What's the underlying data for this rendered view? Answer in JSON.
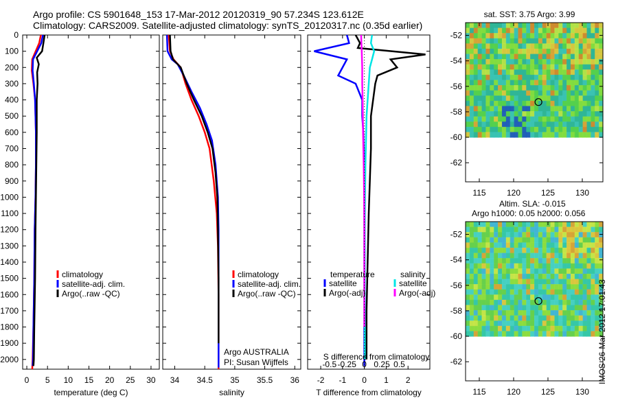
{
  "title": {
    "line1": "Argo profile: CS 5901648_153 17-Mar-2012 20120319_90 57.234S 123.612E",
    "line2": "Climatology: CARS2009. Satellite-adjusted climatology: synTS_20120317.nc (0.35d earlier)"
  },
  "colors": {
    "climatology": "#ff0000",
    "satellite": "#0000ff",
    "argo": "#000000",
    "satellite_salinity": "#00e5e5",
    "argo_salinity": "#ff00ff"
  },
  "depth_axis": {
    "ticks": [
      "0",
      "100",
      "200",
      "300",
      "400",
      "500",
      "600",
      "700",
      "800",
      "900",
      "1000",
      "1100",
      "1200",
      "1300",
      "1400",
      "1500",
      "1600",
      "1700",
      "1800",
      "1900",
      "2000"
    ],
    "ylim": [
      2060,
      0
    ]
  },
  "chart_data": [
    {
      "type": "line",
      "xlabel": "temperature (deg C)",
      "xlim": [
        -1,
        32
      ],
      "xticks": [
        "0",
        "5",
        "10",
        "15",
        "20",
        "25",
        "30"
      ],
      "legend": [
        "climatology",
        "satellite-adj. clim.",
        "Argo(..raw -QC)"
      ],
      "series": [
        {
          "name": "climatology",
          "color": "#ff0000",
          "x": [
            3.4,
            3.0,
            1.3,
            1.2,
            1.6,
            2.0,
            2.2,
            2.2,
            2.1,
            1.9,
            1.8,
            1.6,
            1.4,
            1.3
          ],
          "y": [
            0,
            50,
            150,
            220,
            300,
            400,
            600,
            800,
            1000,
            1200,
            1500,
            1800,
            2000,
            2060
          ]
        },
        {
          "name": "satellite-adj. clim.",
          "color": "#0000ff",
          "x": [
            3.9,
            3.5,
            1.5,
            1.4,
            1.7,
            2.0,
            2.2,
            2.2,
            2.1,
            1.9,
            1.8,
            1.6,
            1.5,
            1.4
          ],
          "y": [
            0,
            50,
            150,
            220,
            300,
            400,
            600,
            800,
            1000,
            1200,
            1500,
            1800,
            2000,
            2040
          ]
        },
        {
          "name": "Argo(..raw -QC)",
          "color": "#000000",
          "x": [
            4.3,
            4.0,
            3.7,
            2.4,
            2.9,
            2.5,
            2.6,
            2.4,
            2.4,
            2.3,
            2.2,
            2.1,
            2.0,
            1.8,
            1.7,
            1.6
          ],
          "y": [
            0,
            50,
            100,
            140,
            180,
            230,
            300,
            400,
            600,
            800,
            1000,
            1200,
            1500,
            1800,
            2000,
            2040
          ]
        }
      ]
    },
    {
      "type": "line",
      "xlabel": "salinity",
      "xlim": [
        33.8,
        36.1
      ],
      "xticks": [
        "34",
        "34.5",
        "35",
        "35.5",
        "36"
      ],
      "legend": [
        "climatology",
        "satellite-adj. clim.",
        "Argo(..raw -QC)"
      ],
      "annotation": [
        "Argo AUSTRALIA",
        "PI: Susan Wijffels"
      ],
      "series": [
        {
          "name": "climatology",
          "color": "#ff0000",
          "x": [
            33.9,
            33.92,
            33.98,
            34.1,
            34.18,
            34.28,
            34.4,
            34.5,
            34.58,
            34.65,
            34.7,
            34.72,
            34.73,
            34.73,
            34.73
          ],
          "y": [
            0,
            100,
            150,
            200,
            300,
            400,
            500,
            600,
            700,
            900,
            1100,
            1300,
            1600,
            2000,
            2060
          ]
        },
        {
          "name": "satellite-adj. clim.",
          "color": "#0000ff",
          "x": [
            33.87,
            33.88,
            33.95,
            34.05,
            34.15,
            34.28,
            34.42,
            34.53,
            34.62,
            34.68,
            34.72,
            34.73,
            34.73,
            34.73,
            34.73
          ],
          "y": [
            0,
            100,
            150,
            180,
            250,
            350,
            450,
            550,
            650,
            800,
            1000,
            1200,
            1500,
            1900,
            2050
          ]
        },
        {
          "name": "Argo(..raw -QC)",
          "color": "#000000",
          "x": [
            33.92,
            33.93,
            33.97,
            34.1,
            34.2,
            34.32,
            34.45,
            34.55,
            34.63,
            34.68,
            34.71,
            34.72,
            34.73,
            34.73
          ],
          "y": [
            0,
            100,
            150,
            200,
            300,
            400,
            500,
            600,
            700,
            850,
            1000,
            1200,
            1500,
            1900
          ]
        }
      ]
    },
    {
      "type": "line",
      "xlabel": "T difference from climatology",
      "xlabel_top": "S difference from climatology",
      "xlim": [
        -2.6,
        3.0
      ],
      "xticks": [
        "-2",
        "-1",
        "0",
        "1",
        "2"
      ],
      "sticks": [
        "-0.5",
        "-0.25",
        "0",
        "0.25",
        "0.5"
      ],
      "s_scale": 3.2,
      "legend_header": [
        "temperature",
        "salinity"
      ],
      "legend": [
        "satellite",
        "Argo(-adj)",
        "satellite",
        "Argo(-adj)"
      ],
      "series": [
        {
          "name": "satellite",
          "color": "#0000ff",
          "x": [
            -0.8,
            -0.7,
            -2.3,
            -0.8,
            -1.2,
            -0.4,
            -0.1,
            -0.1,
            -0.05,
            0,
            0,
            0,
            0,
            0,
            0,
            0
          ],
          "y": [
            0,
            50,
            100,
            150,
            250,
            300,
            400,
            500,
            600,
            800,
            1000,
            1200,
            1500,
            1800,
            2000,
            2040
          ]
        },
        {
          "name": "Argo(-adj)",
          "color": "#000000",
          "x": [
            -0.4,
            -0.2,
            -0.3,
            2.8,
            1.2,
            1.5,
            0.6,
            0.5,
            0.3,
            0.3,
            0.25,
            0.2,
            0.15,
            0.1,
            0.1
          ],
          "y": [
            0,
            50,
            80,
            120,
            150,
            200,
            250,
            300,
            500,
            700,
            900,
            1100,
            1400,
            1700,
            2000
          ]
        },
        {
          "name": "satellite",
          "color": "#00e5e5",
          "x": [
            0.35,
            0.3,
            0.45,
            0.35,
            0.25,
            0.2,
            0.1,
            0.05,
            0.03,
            0.02,
            0.02,
            0.02,
            0.02
          ],
          "y": [
            0,
            50,
            100,
            150,
            200,
            300,
            500,
            800,
            1000,
            1200,
            1500,
            1800,
            2000
          ]
        },
        {
          "name": "Argo(-adj)",
          "color": "#ff00ff",
          "x": [
            -0.15,
            -0.12,
            -0.1,
            -0.1,
            -0.08,
            -0.06,
            -0.03,
            -0.01,
            0,
            0,
            0
          ],
          "y": [
            0,
            100,
            200,
            300,
            400,
            600,
            800,
            1000,
            1200,
            1500,
            1800
          ]
        }
      ]
    },
    {
      "type": "heatmap",
      "title": "sat. SST: 3.75 Argo: 3.99",
      "xticks": [
        "115",
        "120",
        "125",
        "130"
      ],
      "yticks": [
        "-52",
        "-54",
        "-56",
        "-58",
        "-60",
        "-62"
      ],
      "xlim": [
        113,
        133
      ],
      "ylim": [
        -63.5,
        -51
      ],
      "data_ylim": [
        -60,
        -51
      ],
      "argo_position": {
        "lon": 123.612,
        "lat": -57.234
      }
    },
    {
      "type": "heatmap",
      "title": "Altim. SLA: -0.015",
      "subtitle": "Argo h1000: 0.05 h2000: 0.056",
      "xticks": [
        "115",
        "120",
        "125",
        "130"
      ],
      "yticks": [
        "-52",
        "-54",
        "-56",
        "-58",
        "-60",
        "-62"
      ],
      "xlim": [
        113,
        133
      ],
      "ylim": [
        -63.5,
        -51
      ],
      "data_ylim": [
        -60,
        -51
      ],
      "argo_position": {
        "lon": 123.612,
        "lat": -57.234
      }
    }
  ],
  "credit": "IMOS 26-Mar-2012 17:01:43"
}
